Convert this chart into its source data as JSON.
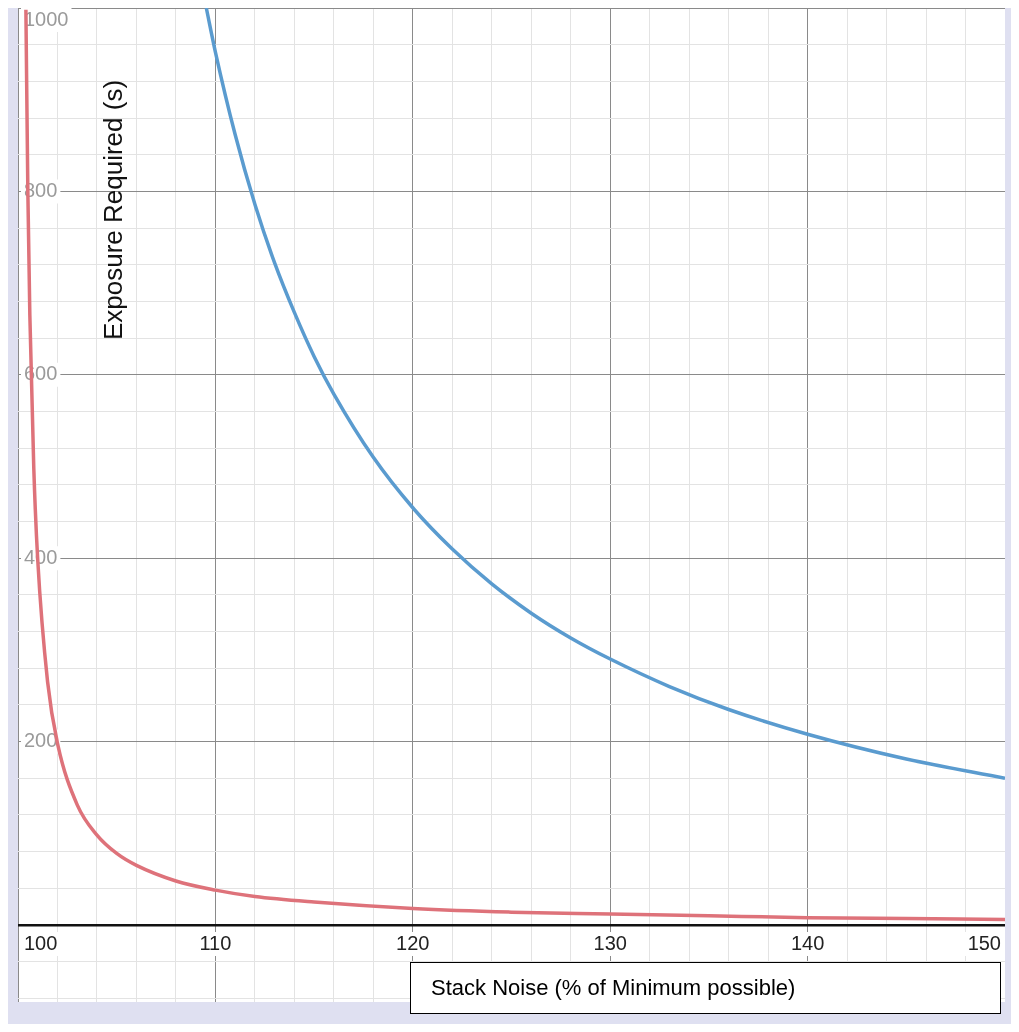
{
  "chart_data": {
    "type": "line",
    "xlabel": "Stack Noise (% of Minimum possible)",
    "ylabel": "Exposure Required (s)",
    "series": [
      {
        "color": "#de727a",
        "x": [
          100.4,
          100.5,
          100.6,
          100.8,
          101,
          101.5,
          102,
          103,
          104,
          105,
          106,
          108,
          110,
          112,
          115,
          120,
          125,
          130,
          135,
          140,
          145,
          150
        ],
        "values": [
          998,
          798,
          665,
          498,
          398,
          265,
          198,
          131,
          98,
          78,
          65,
          48,
          38,
          31,
          25,
          18,
          14,
          12,
          10,
          8,
          7,
          6
        ]
      },
      {
        "color": "#5a9bcf",
        "x": [
          109.54,
          110,
          111,
          112,
          113,
          114,
          115,
          116,
          118,
          120,
          122,
          124,
          126,
          128,
          130,
          133,
          136,
          140,
          145,
          150
        ],
        "values": [
          1000,
          952,
          862,
          786,
          722,
          668,
          620,
          579,
          510,
          455,
          410,
          372,
          340,
          313,
          290,
          260,
          235,
          208,
          181,
          160
        ]
      }
    ],
    "xlim": [
      100,
      150
    ],
    "ylim": [
      -84,
      1000
    ],
    "xticks": [
      100,
      {
        "value": 102,
        "label": null
      },
      {
        "value": 104,
        "label": null
      },
      {
        "value": 106,
        "label": null
      },
      {
        "value": 108,
        "label": null
      },
      110,
      {
        "value": 112,
        "label": null
      },
      {
        "value": 114,
        "label": null
      },
      {
        "value": 116,
        "label": null
      },
      {
        "value": 118,
        "label": null
      },
      120,
      {
        "value": 122,
        "label": null
      },
      {
        "value": 124,
        "label": null
      },
      {
        "value": 126,
        "label": null
      },
      {
        "value": 128,
        "label": null
      },
      130,
      {
        "value": 132,
        "label": null
      },
      {
        "value": 134,
        "label": null
      },
      {
        "value": 136,
        "label": null
      },
      {
        "value": 138,
        "label": null
      },
      140,
      {
        "value": 142,
        "label": null
      },
      {
        "value": 144,
        "label": null
      },
      {
        "value": 146,
        "label": null
      },
      {
        "value": 148,
        "label": null
      },
      150
    ],
    "yticks": [
      {
        "value": -80,
        "label": null
      },
      {
        "value": -40,
        "label": null
      },
      {
        "value": 0,
        "label": null
      },
      {
        "value": 40,
        "label": null
      },
      {
        "value": 80,
        "label": null
      },
      {
        "value": 120,
        "label": null
      },
      {
        "value": 160,
        "label": null
      },
      200,
      {
        "value": 240,
        "label": null
      },
      {
        "value": 280,
        "label": null
      },
      {
        "value": 320,
        "label": null
      },
      {
        "value": 360,
        "label": null
      },
      400,
      {
        "value": 440,
        "label": null
      },
      {
        "value": 480,
        "label": null
      },
      {
        "value": 520,
        "label": null
      },
      {
        "value": 560,
        "label": null
      },
      600,
      {
        "value": 640,
        "label": null
      },
      {
        "value": 680,
        "label": null
      },
      {
        "value": 720,
        "label": null
      },
      {
        "value": 760,
        "label": null
      },
      800,
      {
        "value": 840,
        "label": null
      },
      {
        "value": 880,
        "label": null
      },
      {
        "value": 920,
        "label": null
      },
      {
        "value": 960,
        "label": null
      },
      1000
    ],
    "grid": true
  }
}
